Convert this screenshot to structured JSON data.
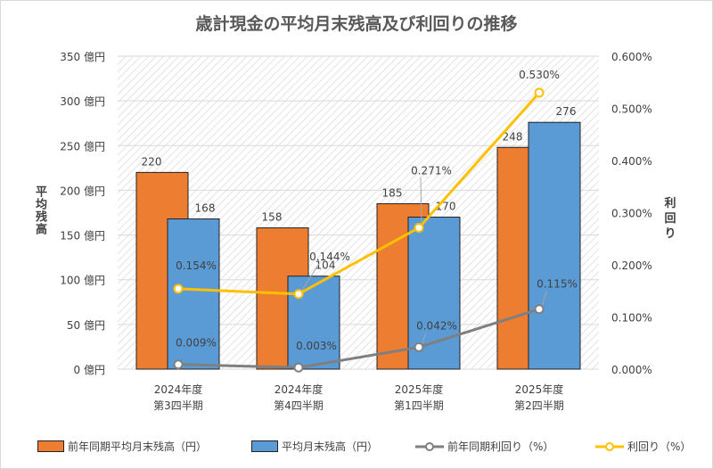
{
  "chart_data": {
    "type": "bar+line",
    "title": "歳計現金の平均月末残高及び利回りの推移",
    "categories": [
      [
        "2024年度",
        "第3四半期"
      ],
      [
        "2024年度",
        "第4四半期"
      ],
      [
        "2025年度",
        "第1四半期"
      ],
      [
        "2025年度",
        "第2四半期"
      ]
    ],
    "y_left": {
      "label": "平均残高",
      "ylim": [
        0,
        350
      ],
      "ticks": [
        0,
        50,
        100,
        150,
        200,
        250,
        300,
        350
      ],
      "tick_suffix": " 億円"
    },
    "y_right": {
      "label": "利回り",
      "ylim": [
        0,
        0.6
      ],
      "ticks": [
        0,
        0.1,
        0.2,
        0.3,
        0.4,
        0.5,
        0.6
      ],
      "tick_suffix": "%"
    },
    "grid": true,
    "legend_position": "bottom",
    "series": [
      {
        "name": "前年同期平均月末残高（円）",
        "type": "bar",
        "axis": "left",
        "color": "#ED7D31",
        "values": [
          220,
          158,
          185,
          248
        ]
      },
      {
        "name": "平均月末残高（円）",
        "type": "bar",
        "axis": "left",
        "color": "#5B9BD5",
        "values": [
          168,
          104,
          170,
          276
        ]
      },
      {
        "name": "前年同期利回り（%）",
        "type": "line",
        "axis": "right",
        "color": "#7F7F7F",
        "values": [
          0.009,
          0.003,
          0.042,
          0.115
        ],
        "labels": [
          "0.009%",
          "0.003%",
          "0.042%",
          "0.115%"
        ]
      },
      {
        "name": "利回り（%）",
        "type": "line",
        "axis": "right",
        "color": "#FFC000",
        "values": [
          0.154,
          0.144,
          0.271,
          0.53
        ],
        "labels": [
          "0.154%",
          "0.144%",
          "0.271%",
          "0.530%"
        ]
      }
    ]
  }
}
